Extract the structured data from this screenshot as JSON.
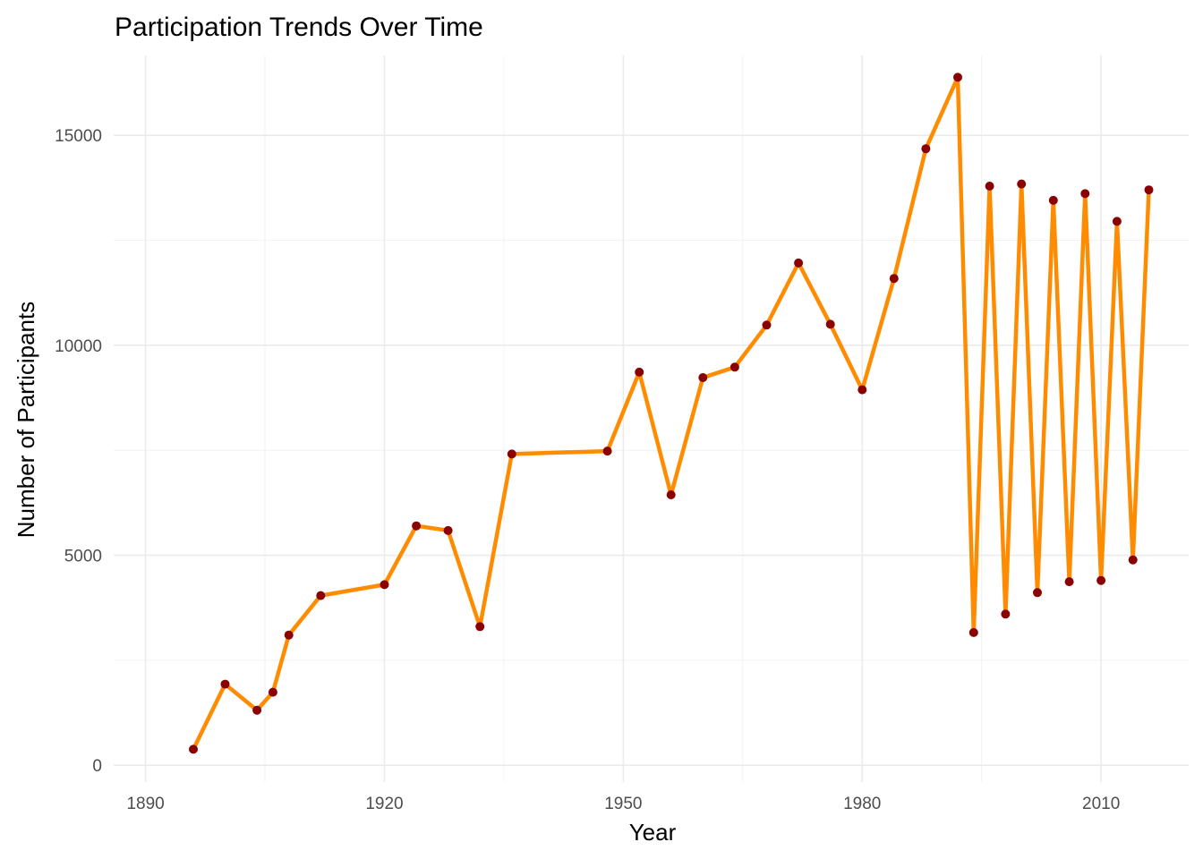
{
  "chart_data": {
    "type": "line",
    "title": "Participation Trends Over Time",
    "xlabel": "Year",
    "ylabel": "Number of Participants",
    "xlim": [
      1886,
      2021
    ],
    "ylim": [
      -400,
      16900
    ],
    "x_ticks": [
      1890,
      1920,
      1950,
      1980,
      2010
    ],
    "x_minor_ticks": [
      1905,
      1935,
      1965,
      1995
    ],
    "y_ticks": [
      0,
      5000,
      10000,
      15000
    ],
    "y_minor_ticks": [
      2500,
      7500,
      12500
    ],
    "x_tick_labels": [
      "1890",
      "1920",
      "1950",
      "1980",
      "2010"
    ],
    "y_tick_labels": [
      "0",
      "5000",
      "10000",
      "15000"
    ],
    "grid": true,
    "legend": "none",
    "colors": {
      "line": "#FF8C00",
      "point": "#8B0000"
    },
    "series": [
      {
        "x": [
          1896,
          1900,
          1904,
          1906,
          1908,
          1912,
          1920,
          1924,
          1928,
          1932,
          1936,
          1948,
          1952,
          1956,
          1960,
          1964,
          1968,
          1972,
          1976,
          1980,
          1984,
          1988,
          1992,
          1994,
          1996,
          1998,
          2000,
          2002,
          2004,
          2006,
          2008,
          2010,
          2012,
          2014,
          2016
        ],
        "values": [
          380,
          1930,
          1310,
          1740,
          3100,
          4040,
          4300,
          5700,
          5590,
          3300,
          7410,
          7480,
          9360,
          6440,
          9230,
          9480,
          10480,
          11960,
          10500,
          8940,
          11590,
          14680,
          16380,
          3160,
          13790,
          3600,
          13840,
          4110,
          13450,
          4370,
          13610,
          4400,
          12950,
          4890,
          13700
        ]
      }
    ]
  }
}
